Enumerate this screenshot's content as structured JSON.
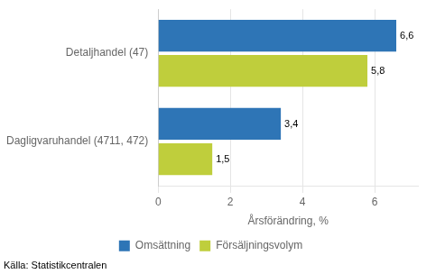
{
  "chart_data": {
    "type": "bar",
    "orientation": "horizontal",
    "categories": [
      "Detaljhandel (47)",
      "Dagligvaruhandel (4711, 472)"
    ],
    "series": [
      {
        "name": "Omsättning",
        "color": "#2E75B6",
        "values": [
          6.6,
          3.4
        ],
        "value_labels": [
          "6,6",
          "3,4"
        ]
      },
      {
        "name": "Försäljningsvolym",
        "color": "#BFCE3C",
        "values": [
          5.8,
          1.5
        ],
        "value_labels": [
          "5,8",
          "1,5"
        ]
      }
    ],
    "xlabel": "Årsförändring, %",
    "xlim": [
      0,
      7.2
    ],
    "xticks": [
      0,
      2,
      4,
      6
    ],
    "grid": true,
    "legend": "bottom",
    "data_labels": true,
    "annotations": [
      "Källa: Statistikcentralen"
    ]
  }
}
